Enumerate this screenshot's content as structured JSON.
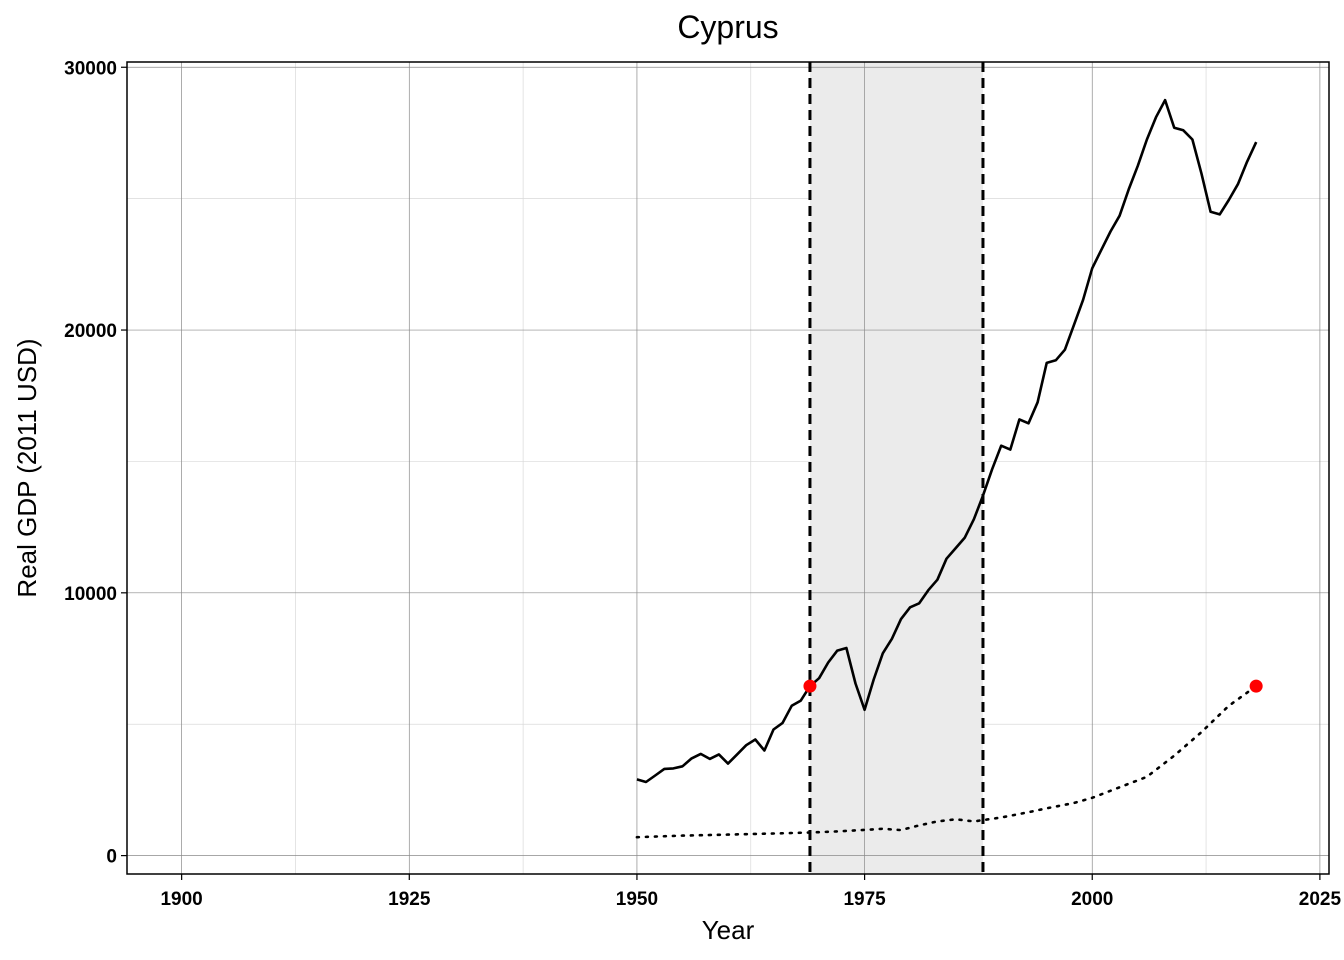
{
  "chart_data": {
    "type": "line",
    "title": "Cyprus",
    "xlabel": "Year",
    "ylabel": "Real GDP (2011 USD)",
    "xlim": [
      1894,
      2026
    ],
    "ylim": [
      -700,
      30200
    ],
    "xticks": [
      1900,
      1925,
      1950,
      1975,
      2000,
      2025
    ],
    "yticks": [
      0,
      10000,
      20000,
      30000
    ],
    "grid": true,
    "legend": "none",
    "shaded_region": {
      "x_start": 1969,
      "x_end": 1988,
      "color": "#ebebeb"
    },
    "vlines": [
      1969,
      1988
    ],
    "series": [
      {
        "style": "solid",
        "color": "#000000",
        "x": [
          1950,
          1951,
          1952,
          1953,
          1954,
          1955,
          1956,
          1957,
          1958,
          1959,
          1960,
          1961,
          1962,
          1963,
          1964,
          1965,
          1966,
          1967,
          1968,
          1969,
          1970,
          1971,
          1972,
          1973,
          1974,
          1975,
          1976,
          1977,
          1978,
          1979,
          1980,
          1981,
          1982,
          1983,
          1984,
          1985,
          1986,
          1987,
          1988,
          1989,
          1990,
          1991,
          1992,
          1993,
          1994,
          1995,
          1996,
          1997,
          1998,
          1999,
          2000,
          2001,
          2002,
          2003,
          2004,
          2005,
          2006,
          2007,
          2008,
          2009,
          2010,
          2011,
          2012,
          2013,
          2014,
          2015,
          2016,
          2017,
          2018
        ],
        "y": [
          2900,
          2800,
          3050,
          3300,
          3320,
          3400,
          3700,
          3870,
          3680,
          3850,
          3500,
          3850,
          4200,
          4420,
          4000,
          4800,
          5050,
          5700,
          5900,
          6450,
          6750,
          7350,
          7800,
          7900,
          6550,
          5550,
          6700,
          7700,
          8250,
          9000,
          9450,
          9600,
          10100,
          10500,
          11300,
          11700,
          12100,
          12800,
          13700,
          14700,
          15600,
          15450,
          16600,
          16450,
          17250,
          18750,
          18850,
          19250,
          20200,
          21150,
          22350,
          23050,
          23750,
          24350,
          25350,
          26250,
          27250,
          28100,
          28750,
          27700,
          27600,
          27250,
          25950,
          24500,
          24400,
          24950,
          25550,
          26400,
          27150
        ]
      },
      {
        "style": "dotted",
        "color": "#000000",
        "x": [
          1950,
          1955,
          1960,
          1965,
          1969,
          1972,
          1975,
          1977,
          1979,
          1981,
          1983,
          1985,
          1987,
          1988,
          1990,
          1993,
          1995,
          1998,
          2000,
          2003,
          2006,
          2009,
          2012,
          2015,
          2018
        ],
        "y": [
          700,
          760,
          800,
          840,
          880,
          920,
          980,
          1020,
          970,
          1150,
          1300,
          1380,
          1300,
          1350,
          1450,
          1650,
          1800,
          2000,
          2200,
          2600,
          3000,
          3800,
          4700,
          5700,
          6450
        ]
      }
    ],
    "markers": [
      {
        "x": 1969,
        "y": 6450,
        "color": "#ff0000"
      },
      {
        "x": 2018,
        "y": 6450,
        "color": "#ff0000"
      }
    ]
  }
}
